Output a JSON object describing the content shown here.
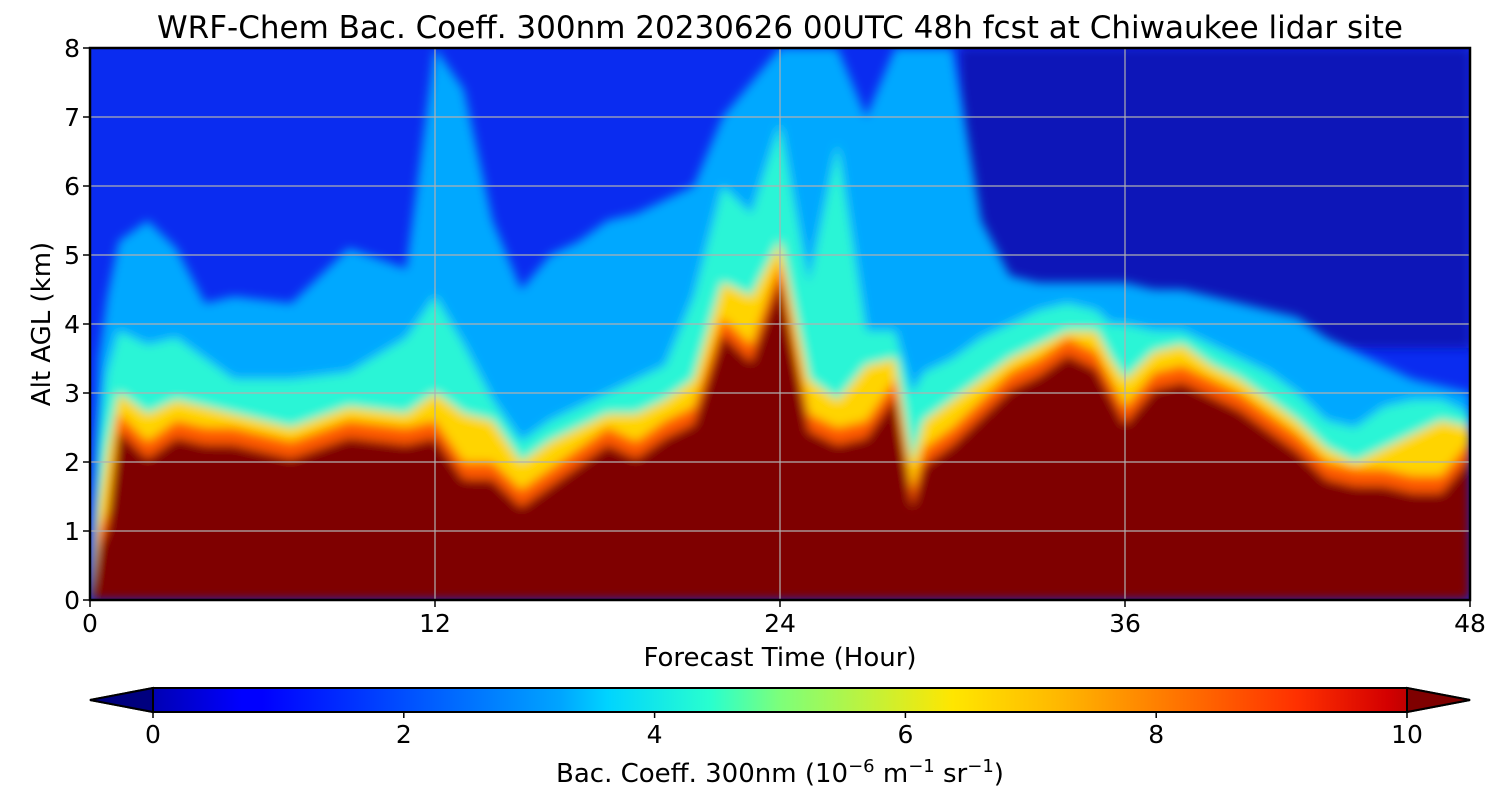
{
  "chart_data": {
    "type": "heatmap",
    "title": "WRF-Chem Bac. Coeff. 300nm  20230626 00UTC 48h fcst at Chiwaukee lidar site",
    "xlabel": "Forecast Time (Hour)",
    "ylabel": "Alt AGL (km)",
    "xlim": [
      0,
      48
    ],
    "ylim": [
      0,
      8
    ],
    "x_ticks": [
      "0",
      "12",
      "24",
      "36",
      "48"
    ],
    "y_ticks": [
      "0",
      "1",
      "2",
      "3",
      "4",
      "5",
      "6",
      "7",
      "8"
    ],
    "grid": true,
    "colormap": "jet",
    "colorbar": {
      "label_prefix": "Bac. Coeff. 300nm  (10",
      "label_exp1": "−6",
      "label_mid": " m",
      "label_exp2": "−1",
      "label_mid2": " sr",
      "label_exp3": "−1",
      "label_suffix": ")",
      "ticks": [
        "0",
        "2",
        "4",
        "6",
        "8",
        "10"
      ],
      "range": [
        0,
        10
      ],
      "extend": "both"
    },
    "layers": {
      "x_hours": [
        0,
        0.3,
        0.6,
        1,
        2,
        3,
        4,
        5,
        7,
        9,
        11,
        12,
        13,
        14,
        15,
        16,
        17,
        18,
        19,
        20,
        21,
        22,
        23,
        24,
        25,
        26,
        27,
        28,
        28.6,
        29,
        30,
        31,
        32,
        33,
        34,
        35,
        35.5,
        36,
        37,
        38,
        39,
        40,
        41,
        42,
        43,
        44,
        45,
        46,
        47,
        48
      ],
      "saturated_top_km": [
        0,
        1.0,
        1.3,
        2.7,
        2.3,
        2.6,
        2.5,
        2.5,
        2.3,
        2.6,
        2.5,
        2.6,
        2.0,
        2.0,
        1.6,
        1.9,
        2.2,
        2.5,
        2.3,
        2.6,
        2.8,
        4.1,
        3.7,
        4.9,
        2.7,
        2.5,
        2.6,
        3.2,
        1.6,
        2.2,
        2.5,
        2.9,
        3.3,
        3.5,
        3.8,
        3.6,
        3.2,
        2.8,
        3.3,
        3.4,
        3.2,
        3.0,
        2.7,
        2.4,
        2.0,
        1.9,
        1.9,
        1.8,
        1.8,
        2.3
      ],
      "yellow_top_km": [
        0,
        1.4,
        2.2,
        3.0,
        2.7,
        2.9,
        2.8,
        2.7,
        2.5,
        2.8,
        2.7,
        3.0,
        2.7,
        2.6,
        2.0,
        2.3,
        2.5,
        2.7,
        2.7,
        2.9,
        3.2,
        4.6,
        4.4,
        5.2,
        3.2,
        2.9,
        3.4,
        3.5,
        2.0,
        2.6,
        2.9,
        3.2,
        3.5,
        3.7,
        3.9,
        3.9,
        3.5,
        3.2,
        3.6,
        3.7,
        3.4,
        3.2,
        2.9,
        2.6,
        2.2,
        2.0,
        2.2,
        2.4,
        2.6,
        2.5
      ],
      "cyan_top_km": [
        0,
        2.3,
        3.3,
        3.9,
        3.7,
        3.8,
        3.5,
        3.2,
        3.2,
        3.3,
        3.8,
        4.4,
        3.7,
        2.9,
        2.3,
        2.6,
        2.8,
        3.0,
        3.2,
        3.4,
        4.4,
        6.0,
        5.6,
        6.9,
        4.6,
        6.6,
        3.9,
        3.9,
        3.0,
        3.3,
        3.5,
        3.8,
        4.0,
        4.2,
        4.3,
        4.2,
        4.0,
        4.0,
        3.9,
        3.9,
        3.7,
        3.5,
        3.3,
        3.0,
        2.6,
        2.5,
        2.8,
        2.9,
        2.9,
        2.7
      ],
      "lightblue_top_km": [
        0,
        3.5,
        4.4,
        5.2,
        5.5,
        5.1,
        4.3,
        4.4,
        4.3,
        5.1,
        4.8,
        8.0,
        7.4,
        5.5,
        4.5,
        5.0,
        5.2,
        5.5,
        5.6,
        5.8,
        6.0,
        7.0,
        7.5,
        8.0,
        8.0,
        8.0,
        7.0,
        8.0,
        8.0,
        8.0,
        8.0,
        5.5,
        4.7,
        4.6,
        4.6,
        4.6,
        4.6,
        4.6,
        4.5,
        4.5,
        4.4,
        4.3,
        4.2,
        4.1,
        3.8,
        3.6,
        3.4,
        3.2,
        3.1,
        3.0
      ]
    }
  }
}
